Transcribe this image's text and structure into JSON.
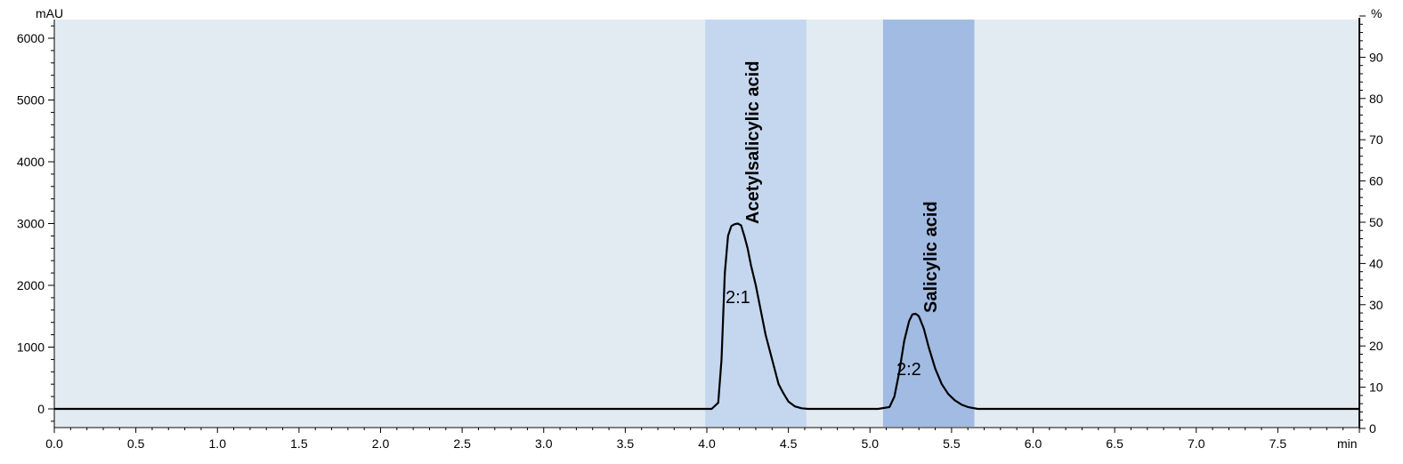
{
  "chart_data": {
    "type": "line",
    "title": "",
    "xlabel": "min",
    "ylabel": "mAU",
    "y2label": "%",
    "xlim": [
      0.0,
      8.0
    ],
    "ylim": [
      -300,
      6300
    ],
    "y2lim": [
      0,
      100
    ],
    "x_ticks": [
      "0.0",
      "0.5",
      "1.0",
      "1.5",
      "2.0",
      "2.5",
      "3.0",
      "3.5",
      "4.0",
      "4.5",
      "5.0",
      "5.5",
      "6.0",
      "6.5",
      "7.0",
      "7.5"
    ],
    "y_ticks": [
      "0",
      "1000",
      "2000",
      "3000",
      "4000",
      "5000",
      "6000"
    ],
    "y2_ticks": [
      "0",
      "10",
      "20",
      "30",
      "40",
      "50",
      "60",
      "70",
      "80",
      "90"
    ],
    "colors": {
      "plot_background": "#e3ebf2",
      "line": "#000000",
      "band_1": "#c5d7ef",
      "band_2": "#a2bbe2"
    },
    "bands": [
      {
        "start": 3.99,
        "end": 4.61,
        "color_key": "band_1"
      },
      {
        "start": 5.08,
        "end": 5.64,
        "color_key": "band_2"
      }
    ],
    "peaks": [
      {
        "name": "Acetylsalicylic acid",
        "id": "2:1",
        "rt": 4.19,
        "height": 3000
      },
      {
        "name": "Salicylic acid",
        "id": "2:2",
        "rt": 5.28,
        "height": 1540
      }
    ],
    "series": [
      {
        "x": [
          0.0,
          3.95,
          4.03,
          4.07,
          4.09,
          4.11,
          4.13,
          4.15,
          4.17,
          4.19,
          4.21,
          4.23,
          4.25,
          4.27,
          4.3,
          4.33,
          4.36,
          4.4,
          4.44,
          4.47,
          4.5,
          4.54,
          4.58,
          4.62,
          4.7,
          5.05,
          5.12,
          5.15,
          5.18,
          5.21,
          5.24,
          5.26,
          5.28,
          5.3,
          5.33,
          5.36,
          5.4,
          5.44,
          5.48,
          5.52,
          5.56,
          5.6,
          5.66,
          8.0
        ],
        "y": [
          0,
          0,
          0,
          100,
          800,
          2200,
          2800,
          2960,
          2990,
          3000,
          2970,
          2800,
          2600,
          2330,
          2000,
          1600,
          1200,
          800,
          400,
          250,
          120,
          40,
          10,
          0,
          0,
          0,
          30,
          200,
          600,
          1100,
          1420,
          1530,
          1540,
          1500,
          1300,
          1000,
          650,
          400,
          240,
          140,
          70,
          30,
          0,
          0
        ]
      }
    ]
  }
}
